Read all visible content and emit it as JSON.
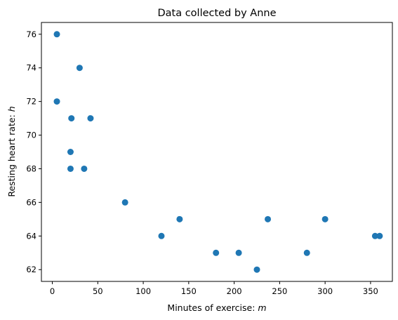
{
  "chart_data": {
    "type": "scatter",
    "title": "Data collected by Anne",
    "xlabel": {
      "text": "Minutes of exercise: ",
      "var": "m"
    },
    "ylabel": {
      "text": "Resting heart rate: ",
      "var": "h"
    },
    "xlim": [
      -12,
      374
    ],
    "ylim": [
      61.3,
      76.7
    ],
    "xticks": [
      0,
      50,
      100,
      150,
      200,
      250,
      300,
      350
    ],
    "yticks": [
      62,
      64,
      66,
      68,
      70,
      72,
      74,
      76
    ],
    "grid": false,
    "marker_color": "#1f77b4",
    "points": [
      {
        "x": 5,
        "y": 76
      },
      {
        "x": 5,
        "y": 72
      },
      {
        "x": 21,
        "y": 71
      },
      {
        "x": 20,
        "y": 69
      },
      {
        "x": 20,
        "y": 68
      },
      {
        "x": 30,
        "y": 74
      },
      {
        "x": 35,
        "y": 68
      },
      {
        "x": 42,
        "y": 71
      },
      {
        "x": 80,
        "y": 66
      },
      {
        "x": 120,
        "y": 64
      },
      {
        "x": 140,
        "y": 65
      },
      {
        "x": 180,
        "y": 63
      },
      {
        "x": 205,
        "y": 63
      },
      {
        "x": 225,
        "y": 62
      },
      {
        "x": 237,
        "y": 65
      },
      {
        "x": 280,
        "y": 63
      },
      {
        "x": 300,
        "y": 65
      },
      {
        "x": 355,
        "y": 64
      },
      {
        "x": 360,
        "y": 64
      }
    ]
  }
}
